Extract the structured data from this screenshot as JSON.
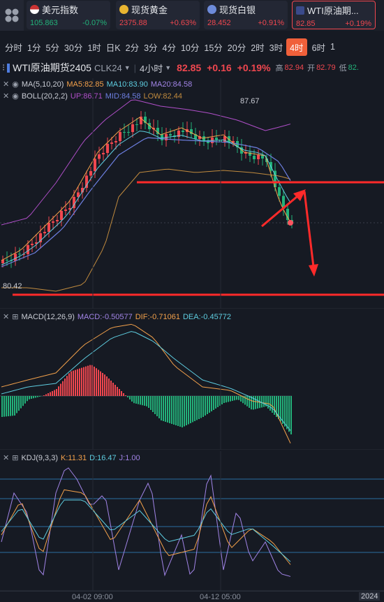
{
  "tickers": [
    {
      "name": "美元指数",
      "price": "105.863",
      "change": "-0.07%",
      "flag": "us-flag-icon"
    },
    {
      "name": "现货黄金",
      "price": "2375.88",
      "change": "+0.63%",
      "flag": "gold-icon"
    },
    {
      "name": "现货白银",
      "price": "28.452",
      "change": "+0.91%",
      "flag": "silver-icon"
    },
    {
      "name": "WTI原油期...",
      "price": "82.85",
      "change": "+0.19%",
      "flag": "chart-icon"
    }
  ],
  "timeframes": [
    "分时",
    "1分",
    "5分",
    "30分",
    "1时",
    "日K",
    "2分",
    "3分",
    "4分",
    "10分",
    "15分",
    "20分",
    "2时",
    "3时",
    "4时",
    "6时",
    "1"
  ],
  "active_timeframe": "4时",
  "quote": {
    "title": "WTI原油期货2405",
    "code": "CLK24",
    "interval": "4小时",
    "price": "82.85",
    "change": "+0.16",
    "change_pct": "+0.19%",
    "high_label": "高",
    "high": "82.94",
    "open_label": "开",
    "open": "82.79",
    "low_label": "低",
    "low": "82."
  },
  "ma": {
    "label": "MA(5,10,20)",
    "ma5": "MA5:82.85",
    "ma10": "MA10:83.90",
    "ma20": "MA20:84.58"
  },
  "boll": {
    "label": "BOLL(20,2,2)",
    "up": "UP:86.71",
    "mid": "MID:84.58",
    "low": "LOW:82.44"
  },
  "price_marks": {
    "high": "87.67",
    "low": "80.42"
  },
  "macd": {
    "label": "MACD(12,26,9)",
    "macd": "MACD:-0.50577",
    "dif": "DIF:-0.71061",
    "dea": "DEA:-0.45772"
  },
  "kdj": {
    "label": "KDJ(9,3,3)",
    "k": "K:11.31",
    "d": "D:16.47",
    "j": "J:1.00"
  },
  "dates": [
    "04-02 09:00",
    "04-12 05:00",
    "2024"
  ],
  "colors": {
    "up": "#f0474f",
    "down": "#23b27a",
    "accent": "#f0603a",
    "bg": "#161a23"
  }
}
